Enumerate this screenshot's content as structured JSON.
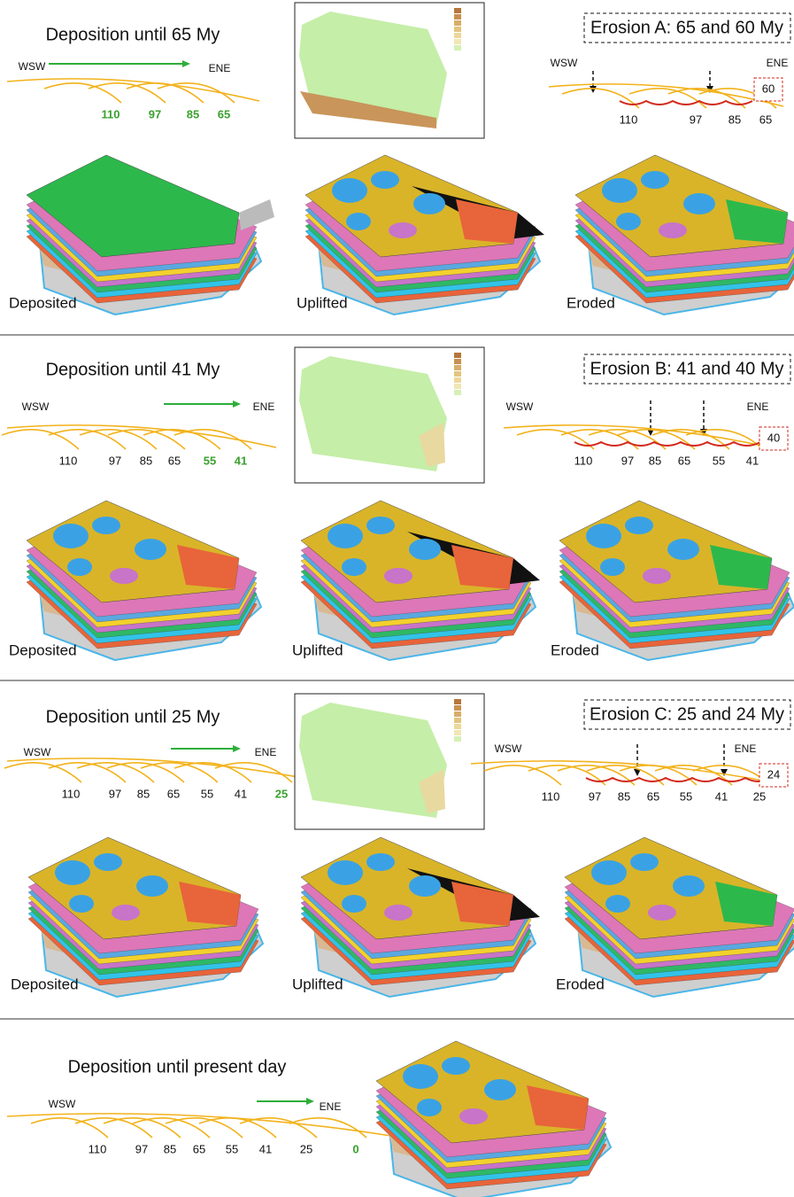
{
  "sections": [
    {
      "deposition": {
        "title": "Deposition until 65 My",
        "wsw": "WSW",
        "ene": "ENE",
        "ages": [
          {
            "value": 110,
            "color": "#3aa12e"
          },
          {
            "value": 97,
            "color": "#3aa12e"
          },
          {
            "value": 85,
            "color": "#3aa12e"
          },
          {
            "value": 65,
            "color": "#3aa12e"
          }
        ]
      },
      "erosion": {
        "title": "Erosion A: 65 and 60 My",
        "wsw": "WSW",
        "ene": "ENE",
        "ages": [
          {
            "value": 110,
            "color": "#111"
          },
          {
            "value": 97,
            "color": "#111"
          },
          {
            "value": 85,
            "color": "#111"
          },
          {
            "value": 65,
            "color": "#111"
          }
        ],
        "box": "60"
      },
      "models": [
        "Deposited",
        "Uplifted",
        "Eroded"
      ]
    },
    {
      "deposition": {
        "title": "Deposition until 41 My",
        "wsw": "WSW",
        "ene": "ENE",
        "ages": [
          {
            "value": 110,
            "color": "#111"
          },
          {
            "value": 97,
            "color": "#111"
          },
          {
            "value": 85,
            "color": "#111"
          },
          {
            "value": 65,
            "color": "#111"
          },
          {
            "value": 55,
            "color": "#3aa12e"
          },
          {
            "value": 41,
            "color": "#3aa12e"
          }
        ]
      },
      "erosion": {
        "title": "Erosion B: 41 and 40 My",
        "wsw": "WSW",
        "ene": "ENE",
        "ages": [
          {
            "value": 110,
            "color": "#111"
          },
          {
            "value": 97,
            "color": "#111"
          },
          {
            "value": 85,
            "color": "#111"
          },
          {
            "value": 65,
            "color": "#111"
          },
          {
            "value": 55,
            "color": "#111"
          },
          {
            "value": 41,
            "color": "#111"
          }
        ],
        "box": "40"
      },
      "models": [
        "Deposited",
        "Uplifted",
        "Eroded"
      ]
    },
    {
      "deposition": {
        "title": "Deposition until 25 My",
        "wsw": "WSW",
        "ene": "ENE",
        "ages": [
          {
            "value": 110,
            "color": "#111"
          },
          {
            "value": 97,
            "color": "#111"
          },
          {
            "value": 85,
            "color": "#111"
          },
          {
            "value": 65,
            "color": "#111"
          },
          {
            "value": 55,
            "color": "#111"
          },
          {
            "value": 41,
            "color": "#111"
          },
          {
            "value": 25,
            "color": "#3aa12e"
          }
        ]
      },
      "erosion": {
        "title": "Erosion C: 25 and 24 My",
        "wsw": "WSW",
        "ene": "ENE",
        "ages": [
          {
            "value": 110,
            "color": "#111"
          },
          {
            "value": 97,
            "color": "#111"
          },
          {
            "value": 85,
            "color": "#111"
          },
          {
            "value": 65,
            "color": "#111"
          },
          {
            "value": 55,
            "color": "#111"
          },
          {
            "value": 41,
            "color": "#111"
          },
          {
            "value": 25,
            "color": "#111"
          }
        ],
        "box": "24"
      },
      "models": [
        "Deposited",
        "Uplifted",
        "Eroded"
      ]
    },
    {
      "deposition": {
        "title": "Deposition until present day",
        "wsw": "WSW",
        "ene": "ENE",
        "ages": [
          {
            "value": 110,
            "color": "#111"
          },
          {
            "value": 97,
            "color": "#111"
          },
          {
            "value": 85,
            "color": "#111"
          },
          {
            "value": 65,
            "color": "#111"
          },
          {
            "value": 55,
            "color": "#111"
          },
          {
            "value": 41,
            "color": "#111"
          },
          {
            "value": 25,
            "color": "#111"
          },
          {
            "value": 0,
            "color": "#3aa12e"
          }
        ]
      }
    }
  ]
}
